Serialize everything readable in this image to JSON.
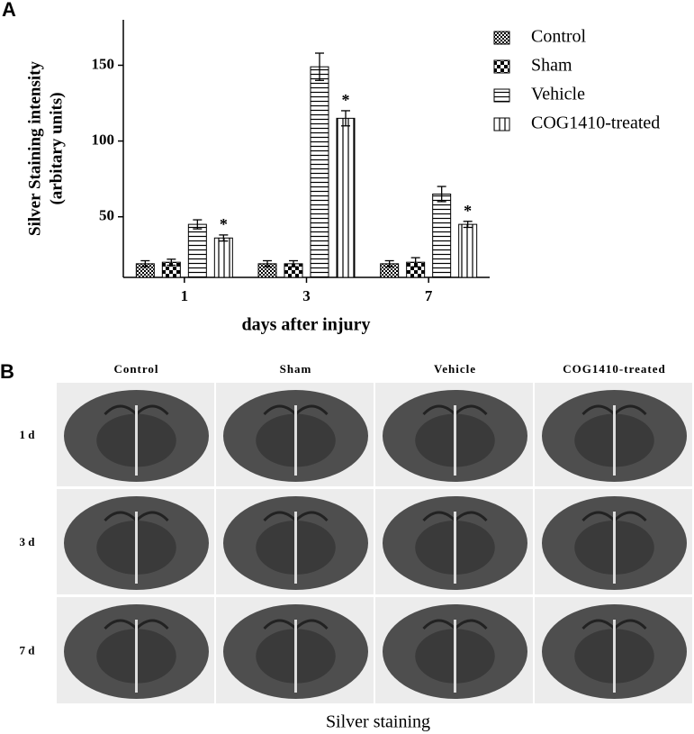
{
  "panel_labels": [
    "A",
    "B"
  ],
  "chart_data": {
    "type": "bar",
    "ylabel": [
      "Silver Staining intensity",
      "(arbitary units)"
    ],
    "xlabel": "days after injury",
    "categories": [
      "1",
      "3",
      "7"
    ],
    "series": [
      {
        "name": "Control",
        "color": "#000000",
        "pattern": "fine-checker",
        "values": [
          19,
          19,
          19
        ],
        "errors": [
          2,
          2,
          2
        ]
      },
      {
        "name": "Sham",
        "color": "#000000",
        "pattern": "checker",
        "values": [
          20,
          19,
          20
        ],
        "errors": [
          2,
          2,
          3
        ]
      },
      {
        "name": "Vehicle",
        "color": "#000000",
        "pattern": "horizontal",
        "values": [
          45,
          149,
          65
        ],
        "errors": [
          3,
          9,
          5
        ]
      },
      {
        "name": "COG1410-treated",
        "color": "#000000",
        "pattern": "vertical",
        "values": [
          36,
          115,
          45
        ],
        "errors": [
          2,
          5,
          2
        ],
        "significance": [
          "*",
          "*",
          "*"
        ]
      }
    ],
    "ylim": [
      10,
      180
    ],
    "yticks": [
      50,
      100,
      150
    ],
    "grid": false,
    "legend": "upper right"
  },
  "image_grid": {
    "columns": [
      "Control",
      "Sham",
      "Vehicle",
      "COG1410-treated"
    ],
    "rows": [
      "1 d",
      "3 d",
      "7 d"
    ],
    "caption": "Silver staining"
  }
}
